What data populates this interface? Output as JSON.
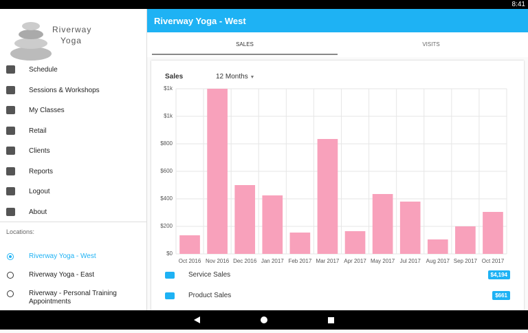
{
  "status_bar": {
    "time": "8:41"
  },
  "drawer": {
    "logo": [
      "Riverway",
      "Yoga"
    ],
    "menu": [
      "Schedule",
      "Sessions & Workshops",
      "My Classes",
      "Retail",
      "Clients",
      "Reports",
      "Logout",
      "About"
    ],
    "locations_label": "Locations:",
    "locations": [
      "Riverway Yoga - West",
      "Riverway Yoga - East",
      "Riverway - Personal Training Appointments"
    ],
    "selected_location": 0
  },
  "app_bar": {
    "title": "Riverway Yoga - West"
  },
  "tabs": [
    "SALES",
    "VISITS"
  ],
  "active_tab": 0,
  "sales_card": {
    "title": "Sales",
    "period": "12 Months",
    "summary": [
      {
        "label": "Service Sales",
        "value": "$4,194"
      },
      {
        "label": "Product Sales",
        "value": "$661"
      }
    ]
  },
  "chart_data": {
    "type": "bar",
    "categories": [
      "Oct 2016",
      "Nov 2016",
      "Dec 2016",
      "Jan 2017",
      "Feb 2017",
      "Mar 2017",
      "Apr 2017",
      "May 2017",
      "Jul 2017",
      "Aug 2017",
      "Sep 2017",
      "Oct 2017"
    ],
    "values": [
      135,
      1200,
      500,
      425,
      155,
      835,
      165,
      435,
      380,
      105,
      200,
      305
    ],
    "color": "#f8a1bb",
    "ylim": [
      0,
      1200
    ],
    "yticks": [
      {
        "value": 0,
        "label": "$0"
      },
      {
        "value": 200,
        "label": "$200"
      },
      {
        "value": 400,
        "label": "$400"
      },
      {
        "value": 600,
        "label": "$600"
      },
      {
        "value": 800,
        "label": "$800"
      },
      {
        "value": 1000,
        "label": "$1k"
      },
      {
        "value": 1200,
        "label": "$1k"
      }
    ],
    "grid": true
  }
}
